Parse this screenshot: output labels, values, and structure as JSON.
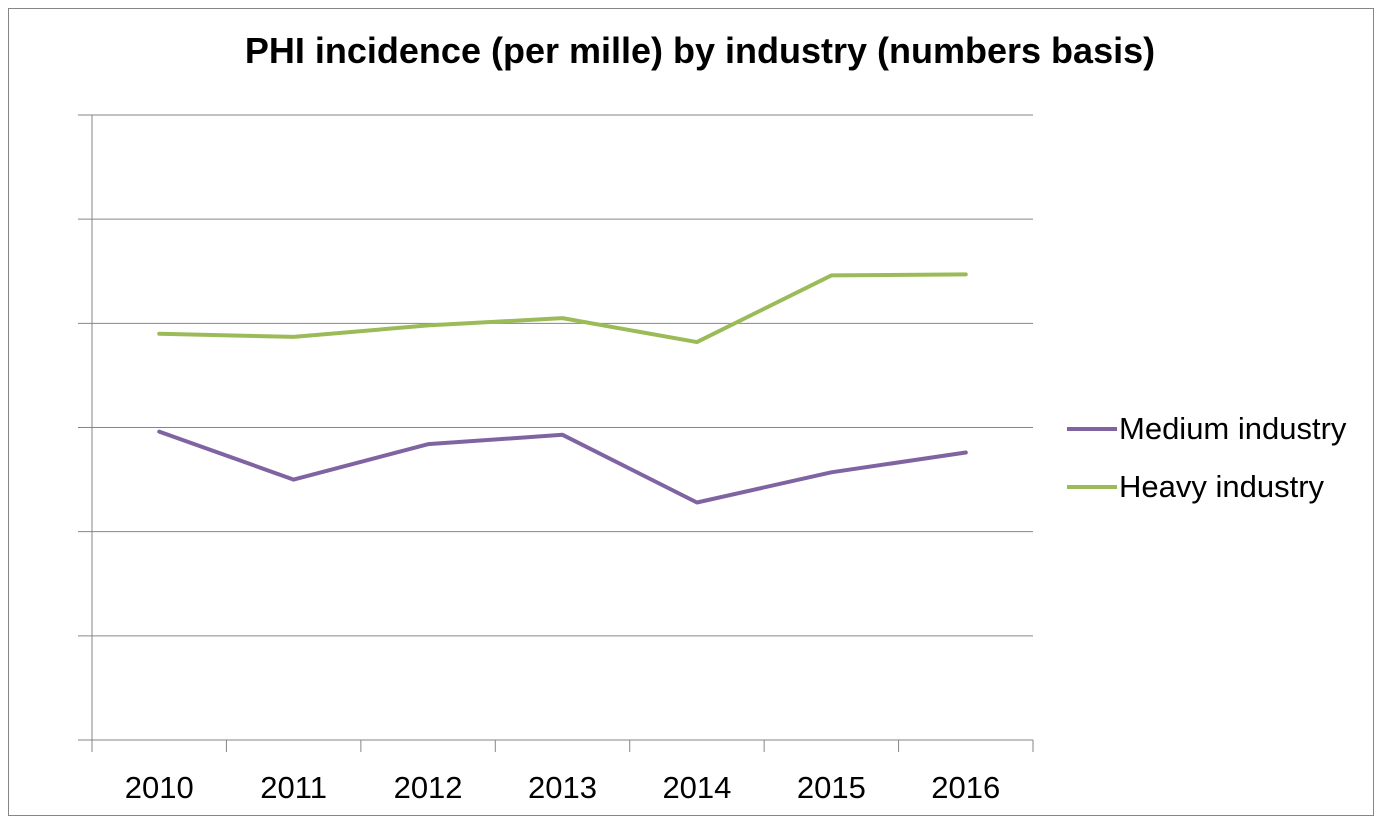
{
  "chart_data": {
    "type": "line",
    "title": "PHI incidence (per mille) by industry (numbers basis)",
    "xlabel": "",
    "ylabel": "",
    "categories": [
      "2010",
      "2011",
      "2012",
      "2013",
      "2014",
      "2015",
      "2016"
    ],
    "ylim": [
      0,
      6
    ],
    "y_gridlines": [
      1,
      2,
      3,
      4,
      5,
      6
    ],
    "grid": true,
    "y_tick_labels_shown": false,
    "legend_position": "right",
    "series": [
      {
        "name": "Medium industry",
        "color": "#8064A2",
        "values": [
          2.96,
          2.5,
          2.84,
          2.93,
          2.28,
          2.57,
          2.76
        ]
      },
      {
        "name": "Heavy industry",
        "color": "#9BBB59",
        "values": [
          3.9,
          3.87,
          3.98,
          4.05,
          3.82,
          4.46,
          4.47
        ]
      }
    ]
  }
}
